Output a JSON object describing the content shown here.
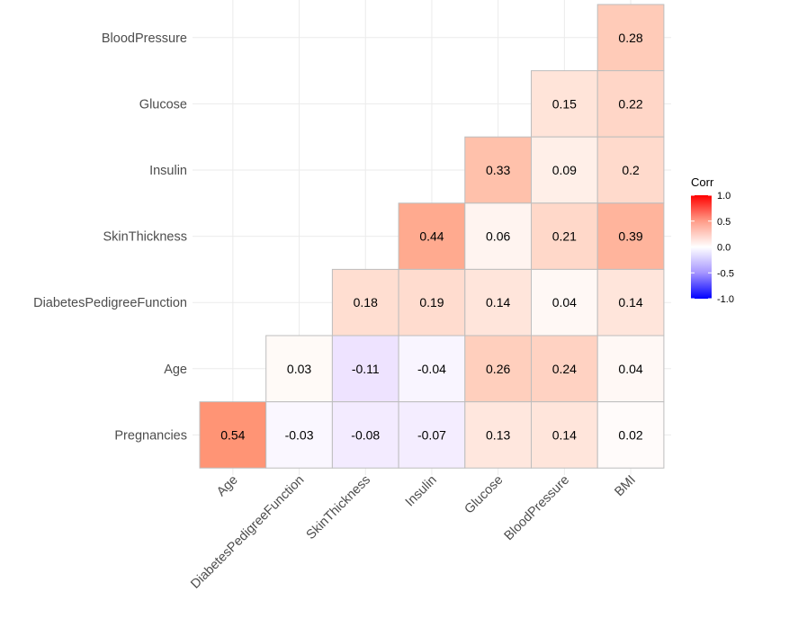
{
  "chart_data": {
    "type": "heatmap",
    "x_categories": [
      "Age",
      "DiabetesPedigreeFunction",
      "SkinThickness",
      "Insulin",
      "Glucose",
      "BloodPressure",
      "BMI"
    ],
    "y_categories": [
      "BloodPressure",
      "Glucose",
      "Insulin",
      "SkinThickness",
      "DiabetesPedigreeFunction",
      "Age",
      "Pregnancies"
    ],
    "values": [
      [
        null,
        null,
        null,
        null,
        null,
        null,
        0.28
      ],
      [
        null,
        null,
        null,
        null,
        null,
        0.15,
        0.22
      ],
      [
        null,
        null,
        null,
        null,
        0.33,
        0.09,
        0.2
      ],
      [
        null,
        null,
        null,
        0.44,
        0.06,
        0.21,
        0.39
      ],
      [
        null,
        null,
        0.18,
        0.19,
        0.14,
        0.04,
        0.14
      ],
      [
        null,
        0.03,
        -0.11,
        -0.04,
        0.26,
        0.24,
        0.04
      ],
      [
        0.54,
        -0.03,
        -0.08,
        -0.07,
        0.13,
        0.14,
        0.02
      ]
    ],
    "legend": {
      "title": "Corr",
      "ticks": [
        "1.0",
        "0.5",
        "0.0",
        "-0.5",
        "-1.0"
      ],
      "range": [
        -1,
        1
      ],
      "colors": {
        "high": "#FF0000",
        "mid": "#FFFFFF",
        "low": "#0000FF"
      },
      "placement": "right"
    },
    "grid": true
  }
}
